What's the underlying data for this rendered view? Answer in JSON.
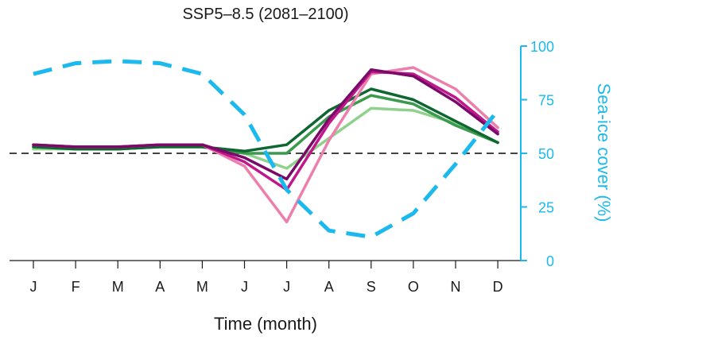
{
  "chart_data": {
    "type": "line",
    "title": "SSP5–8.5 (2081–2100)",
    "xlabel": "Time (month)",
    "ylabel_right": "Sea-ice cover (%)",
    "categories": [
      "J",
      "F",
      "M",
      "A",
      "M",
      "J",
      "J",
      "A",
      "S",
      "O",
      "N",
      "D"
    ],
    "ylim_right": [
      0,
      100
    ],
    "yticks_right": [
      "0",
      "25",
      "50",
      "75",
      "100"
    ],
    "reference_line": 50,
    "grid": false,
    "series": [
      {
        "name": "light-green",
        "color": "#90d18e",
        "style": "solid",
        "values": [
          52,
          52,
          52,
          53,
          53,
          50,
          43,
          57,
          71,
          70,
          64,
          55
        ]
      },
      {
        "name": "mid-green",
        "color": "#3a9a4e",
        "style": "solid",
        "values": [
          53,
          52,
          52,
          53,
          53,
          50,
          50,
          67,
          77,
          73,
          63,
          55
        ]
      },
      {
        "name": "dark-green",
        "color": "#0e6630",
        "style": "solid",
        "values": [
          53,
          52,
          52,
          53,
          53,
          51,
          54,
          70,
          80,
          75,
          65,
          55
        ]
      },
      {
        "name": "light-pink",
        "color": "#ec7fac",
        "style": "solid",
        "values": [
          54,
          53,
          53,
          54,
          54,
          44,
          18,
          56,
          87,
          90,
          80,
          62
        ]
      },
      {
        "name": "magenta",
        "color": "#c0188a",
        "style": "solid",
        "values": [
          54,
          53,
          53,
          54,
          54,
          46,
          33,
          64,
          88,
          87,
          76,
          60
        ]
      },
      {
        "name": "purple",
        "color": "#7a0a68",
        "style": "solid",
        "values": [
          54,
          53,
          53,
          54,
          54,
          48,
          38,
          66,
          89,
          86,
          74,
          59
        ]
      },
      {
        "name": "sea-ice-cover",
        "color": "#1bb9ee",
        "style": "dashed",
        "values": [
          87,
          92,
          93,
          92,
          87,
          68,
          33,
          14,
          11,
          22,
          45,
          70
        ]
      }
    ],
    "axis_color": "#1bb9ee"
  }
}
